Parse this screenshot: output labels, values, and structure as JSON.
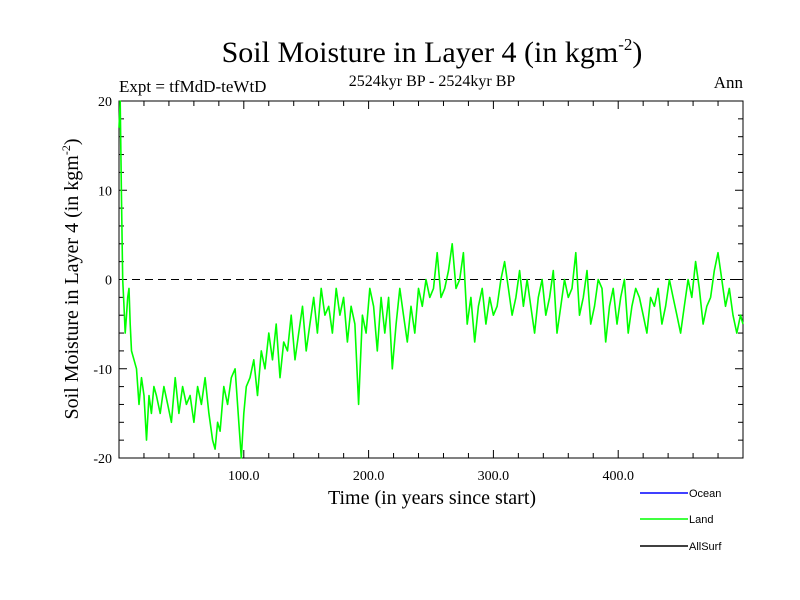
{
  "chart_data": {
    "type": "line",
    "title": "Soil Moisture in Layer 4 (in kgm",
    "title_sup": "-2",
    "title_close": ")",
    "subtitle_left": "Expt = tfMdD-teWtD",
    "subtitle_center": "2524kyr BP - 2524kyr BP",
    "subtitle_right": "Ann",
    "xlabel": "Time (in years since start)",
    "ylabel": "Soil Moisture in Layer 4 (in kgm",
    "ylabel_sup": "-2",
    "ylabel_close": ")",
    "xlim": [
      0,
      500
    ],
    "ylim": [
      -20,
      20
    ],
    "x_ticks": [
      100,
      200,
      300,
      400
    ],
    "x_tick_labels": [
      "100.0",
      "200.0",
      "300.0",
      "400.0"
    ],
    "y_ticks": [
      -20,
      -10,
      0,
      10,
      20
    ],
    "y_tick_labels": [
      "-20",
      "-10",
      "0",
      "10",
      "20"
    ],
    "zero_line": true,
    "legend": [
      "Ocean",
      "Land",
      "AllSurf"
    ],
    "series": [
      {
        "name": "Land",
        "color": "#00ff00",
        "x": [
          0,
          1,
          2,
          3,
          4,
          5,
          6,
          7,
          8,
          9,
          10,
          12,
          14,
          16,
          18,
          20,
          22,
          24,
          26,
          28,
          30,
          33,
          36,
          39,
          42,
          45,
          48,
          51,
          54,
          57,
          60,
          63,
          66,
          69,
          72,
          75,
          77,
          79,
          81,
          84,
          87,
          90,
          93,
          96,
          98,
          100,
          102,
          105,
          108,
          111,
          114,
          117,
          120,
          123,
          126,
          129,
          132,
          135,
          138,
          141,
          144,
          147,
          150,
          153,
          156,
          159,
          162,
          165,
          168,
          171,
          174,
          177,
          180,
          183,
          186,
          189,
          192,
          195,
          198,
          201,
          204,
          207,
          210,
          213,
          216,
          219,
          222,
          225,
          228,
          231,
          234,
          237,
          240,
          243,
          246,
          249,
          252,
          255,
          258,
          261,
          264,
          267,
          270,
          273,
          276,
          279,
          282,
          285,
          288,
          291,
          294,
          297,
          300,
          303,
          306,
          309,
          312,
          315,
          318,
          321,
          324,
          327,
          330,
          333,
          336,
          339,
          342,
          345,
          348,
          351,
          354,
          357,
          360,
          363,
          366,
          369,
          372,
          375,
          378,
          381,
          384,
          387,
          390,
          393,
          396,
          399,
          402,
          405,
          408,
          411,
          414,
          417,
          420,
          423,
          426,
          429,
          432,
          435,
          438,
          441,
          444,
          447,
          450,
          453,
          456,
          459,
          462,
          465,
          468,
          471,
          474,
          477,
          480,
          483,
          486,
          489,
          492,
          495,
          498,
          500
        ],
        "values": [
          17,
          20,
          9,
          0,
          -3,
          -6,
          -4,
          -2,
          -1,
          -5,
          -8,
          -9,
          -10,
          -14,
          -11,
          -13,
          -18,
          -13,
          -15,
          -12,
          -13,
          -15,
          -12,
          -14,
          -16,
          -11,
          -15,
          -12,
          -14,
          -13,
          -16,
          -12,
          -14,
          -11,
          -15,
          -18,
          -19,
          -16,
          -17,
          -12,
          -14,
          -11,
          -10,
          -16,
          -20,
          -15,
          -12,
          -11,
          -9,
          -13,
          -8,
          -10,
          -6,
          -9,
          -5,
          -11,
          -7,
          -8,
          -4,
          -9,
          -6,
          -3,
          -8,
          -5,
          -2,
          -6,
          -1,
          -4,
          -3,
          -6,
          -1,
          -4,
          -2,
          -7,
          -3,
          -5,
          -14,
          -4,
          -6,
          -1,
          -3,
          -8,
          -2,
          -6,
          -2,
          -10,
          -5,
          -1,
          -4,
          -7,
          -3,
          -6,
          -1,
          -3,
          0,
          -2,
          -1,
          3,
          -2,
          -1,
          1,
          4,
          -1,
          0,
          3,
          -5,
          -2,
          -7,
          -3,
          -1,
          -5,
          -2,
          -4,
          -3,
          0,
          2,
          -1,
          -4,
          -2,
          1,
          -3,
          0,
          -3,
          -6,
          -2,
          0,
          -4,
          -2,
          1,
          -6,
          -3,
          0,
          -2,
          -1,
          3,
          -4,
          -2,
          1,
          -5,
          -3,
          0,
          -1,
          -7,
          -3,
          -1,
          -5,
          -2,
          0,
          -6,
          -3,
          -1,
          -2,
          -4,
          -6,
          -2,
          -3,
          -1,
          -5,
          -3,
          0,
          -2,
          -4,
          -6,
          -3,
          0,
          -2,
          2,
          -1,
          -5,
          -3,
          -2,
          1,
          3,
          0,
          -3,
          -1,
          -4,
          -6,
          -4,
          -5
        ]
      }
    ]
  }
}
